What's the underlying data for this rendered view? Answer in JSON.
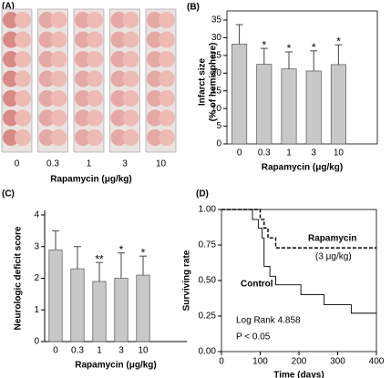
{
  "panel_a": {
    "panel_label": "(A)",
    "categories": [
      "0",
      "0.3",
      "1",
      "3",
      "10"
    ],
    "xlabel": "Rapamycin (μg/kg)"
  },
  "chart_data": [
    {
      "type": "bar",
      "panel_label": "(B)",
      "ylabel": [
        "Infarct size",
        "(% of hemisphere)"
      ],
      "xlabel": "Rapamycin (μg/kg)",
      "categories": [
        "0",
        "0.3",
        "1",
        "3",
        "10"
      ],
      "values": [
        28.2,
        22.5,
        21.2,
        20.6,
        22.4
      ],
      "errors": [
        5.5,
        4.5,
        4.8,
        5.7,
        5.6
      ],
      "significance": [
        null,
        "*",
        "*",
        "*",
        "*"
      ],
      "color": "#c8c8c8",
      "ylim": [
        0,
        35
      ],
      "yticks": [
        0,
        5,
        10,
        15,
        20,
        25,
        30,
        35
      ],
      "frame": true
    },
    {
      "type": "bar",
      "panel_label": "(C)",
      "ylabel": [
        "Neurologic deficit score"
      ],
      "xlabel": "Rapamycin (μg/kg)",
      "categories": [
        "0",
        "0.3",
        "1",
        "3",
        "10"
      ],
      "values": [
        2.9,
        2.3,
        1.9,
        2.0,
        2.1
      ],
      "errors": [
        0.6,
        0.7,
        0.6,
        0.8,
        0.6
      ],
      "significance": [
        null,
        null,
        "**",
        "*",
        "*"
      ],
      "color": "#c8c8c8",
      "ylim": [
        0,
        4
      ],
      "yticks": [
        0,
        1,
        2,
        3,
        4
      ],
      "frame": false
    },
    {
      "type": "step",
      "panel_label": "(D)",
      "ylabel": [
        "Surviving rate"
      ],
      "xlabel": "Time (days)",
      "xlim": [
        0,
        400
      ],
      "xticks": [
        0,
        100,
        200,
        300,
        400
      ],
      "ylim": [
        0,
        1
      ],
      "yticks": [
        {
          "value": 0,
          "label": "0.00"
        },
        0.25,
        {
          "value": 0.5,
          "label": "0.50"
        },
        0.75,
        {
          "value": 1,
          "label": "1.00"
        }
      ],
      "frame": true,
      "series": [
        {
          "name": "Control",
          "color": "#000000",
          "dashed": false,
          "x": [
            0,
            80,
            80,
            95,
            95,
            105,
            105,
            110,
            110,
            125,
            125,
            140,
            140,
            205,
            205,
            265,
            265,
            335,
            335,
            400
          ],
          "values": [
            1,
            1,
            0.93,
            0.93,
            0.87,
            0.87,
            0.8,
            0.8,
            0.6,
            0.6,
            0.53,
            0.53,
            0.47,
            0.47,
            0.4,
            0.4,
            0.33,
            0.33,
            0.27,
            0.27
          ]
        },
        {
          "name": "Rapamycin",
          "color": "#000000",
          "dashed": true,
          "x": [
            0,
            100,
            100,
            110,
            110,
            120,
            120,
            140,
            140,
            400
          ],
          "values": [
            1,
            1,
            0.93,
            0.93,
            0.87,
            0.87,
            0.8,
            0.8,
            0.73,
            0.73
          ]
        }
      ],
      "annotations": [
        "(3 μg/kg)",
        "Log Rank 4.858",
        "P < 0.05"
      ]
    }
  ]
}
